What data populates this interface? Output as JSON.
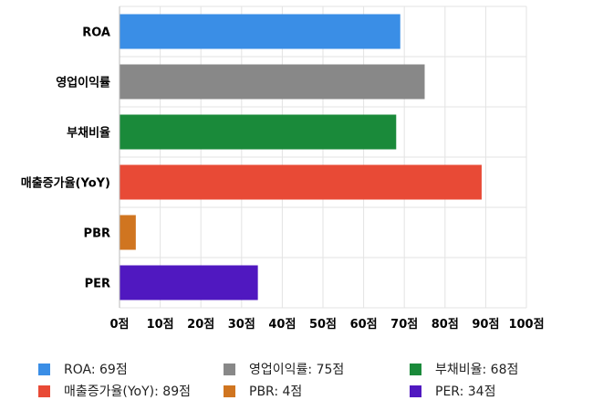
{
  "chart_data": {
    "type": "bar",
    "orientation": "horizontal",
    "categories": [
      "ROA",
      "영업이익률",
      "부채비율",
      "매출증가율(YoY)",
      "PBR",
      "PER"
    ],
    "values": [
      69,
      75,
      68,
      89,
      4,
      34
    ],
    "colors": [
      "#3a8ee6",
      "#888888",
      "#1a8a3a",
      "#e84a36",
      "#d07520",
      "#5018c0"
    ],
    "xlim": [
      0,
      100
    ],
    "x_ticks": [
      "0점",
      "10점",
      "20점",
      "30점",
      "40점",
      "50점",
      "60점",
      "70점",
      "80점",
      "90점",
      "100점"
    ],
    "grid": true,
    "legend_position": "bottom",
    "legend": [
      "ROA: 69점",
      "영업이익률: 75점",
      "부채비율: 68점",
      "매출증가율(YoY): 89점",
      "PBR: 4점",
      "PER: 34점"
    ]
  }
}
